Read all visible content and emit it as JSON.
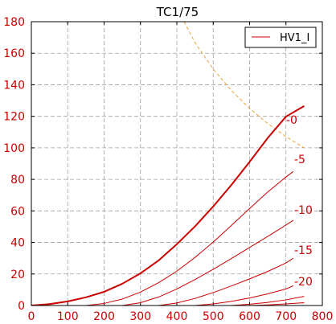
{
  "chart_data": {
    "type": "line",
    "title": "TC1/75",
    "xlabel": "",
    "ylabel": "",
    "xlim": [
      0,
      800
    ],
    "ylim": [
      0,
      180
    ],
    "x_ticks": [
      0,
      100,
      200,
      300,
      400,
      500,
      600,
      700,
      800
    ],
    "y_ticks": [
      0,
      20,
      40,
      60,
      80,
      100,
      120,
      140,
      160,
      180
    ],
    "grid": true,
    "legend_position": "top-right",
    "legend_entries": [
      "HV1_I"
    ],
    "colors": {
      "curves": "#cc0000",
      "max_dissipation": "#e8a33a",
      "grid": "#a0a0a0",
      "tick_labels": "#cc0000"
    },
    "series": [
      {
        "name": "HV1_I",
        "label": "-0",
        "bold": true,
        "x": [
          0,
          50,
          100,
          150,
          200,
          250,
          300,
          350,
          400,
          450,
          500,
          550,
          600,
          650,
          700,
          750
        ],
        "y": [
          0,
          0.9,
          2.6,
          5.2,
          8.7,
          13.8,
          20.4,
          28.6,
          38.9,
          50.2,
          62.8,
          76.5,
          91.1,
          106.3,
          119.8,
          126.5
        ]
      },
      {
        "label": "-5",
        "x": [
          150,
          200,
          250,
          300,
          350,
          400,
          450,
          500,
          550,
          600,
          650,
          700,
          720
        ],
        "y": [
          0,
          1.3,
          4.1,
          8.5,
          14.5,
          21.8,
          30.5,
          40.2,
          50.8,
          61.5,
          72.0,
          81.5,
          85.0
        ]
      },
      {
        "label": "-10",
        "x": [
          250,
          300,
          350,
          400,
          450,
          500,
          550,
          600,
          650,
          700,
          720
        ],
        "y": [
          0,
          1.8,
          5.4,
          10.5,
          16.5,
          23.0,
          29.8,
          36.8,
          43.8,
          51.0,
          54.0
        ]
      },
      {
        "label": "-15",
        "x": [
          350,
          400,
          450,
          500,
          550,
          600,
          650,
          700,
          720
        ],
        "y": [
          0,
          1.6,
          4.5,
          8.2,
          12.4,
          16.9,
          21.6,
          27.0,
          30.0
        ]
      },
      {
        "label": "-20",
        "x": [
          450,
          500,
          550,
          600,
          650,
          700,
          720
        ],
        "y": [
          0,
          1.0,
          2.6,
          4.8,
          7.4,
          10.5,
          12.5
        ]
      },
      {
        "label": "",
        "x": [
          550,
          600,
          650,
          700,
          750
        ],
        "y": [
          0,
          0.8,
          2.0,
          3.6,
          5.8
        ]
      },
      {
        "label": "",
        "x": [
          600,
          650,
          700,
          750
        ],
        "y": [
          0,
          0.4,
          1.0,
          1.8
        ]
      }
    ],
    "max_dissipation_curve": {
      "x": [
        420,
        450,
        500,
        550,
        600,
        650,
        700,
        750
      ],
      "y": [
        180,
        166.7,
        150,
        136.4,
        125,
        115.4,
        107.1,
        100
      ]
    }
  }
}
